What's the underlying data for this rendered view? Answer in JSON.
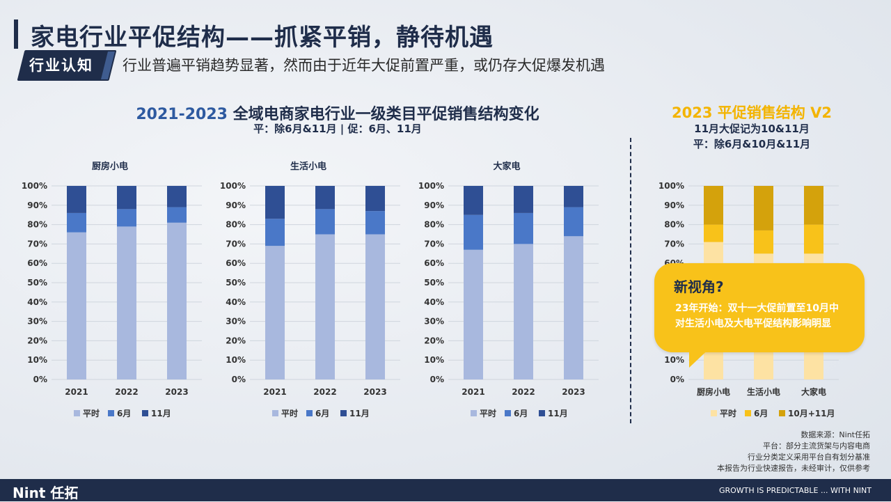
{
  "header": {
    "title": "家电行业平促结构——抓紧平销，静待机遇",
    "tag": "行业认知",
    "subtitle": "行业普遍平销趋势显著，然而由于近年大促前置严重，或仍存大促爆发机遇"
  },
  "main_section": {
    "title_years": "2021-2023",
    "title_rest": " 全域电商家电行业一级类目平促销售结构变化",
    "note": "平：除6月&11月 | 促：6月、11月"
  },
  "right_section": {
    "title": "2023 平促销售结构 V2",
    "note1": "11月大促记为10&11月",
    "note2": "平：除6月&10月&11月"
  },
  "callout": {
    "heading": "新视角?",
    "line1": "23年开始：双十一大促前置至10月中",
    "line2": "对生活小电及大电平促结构影响明显"
  },
  "sources": {
    "line1": "数据来源：Nint任拓",
    "line2": "平台：部分主流货架与内容电商",
    "line3": "行业分类定义采用平台自有划分基准",
    "line4": "本报告为行业快速报告，未经审计，仅供参考"
  },
  "footer": {
    "logo": "Nint 任拓",
    "slogan": "GROWTH IS PREDICTABLE ... WITH NINT"
  },
  "chart_data": [
    {
      "type": "bar",
      "stacked": true,
      "title": "厨房小电",
      "categories": [
        "2021",
        "2022",
        "2023"
      ],
      "yticks": [
        "0%",
        "10%",
        "20%",
        "30%",
        "40%",
        "50%",
        "60%",
        "70%",
        "80%",
        "90%",
        "100%"
      ],
      "ylim": [
        0,
        100
      ],
      "series": [
        {
          "name": "平时",
          "values": [
            76,
            79,
            81
          ],
          "color": "#a8b8de"
        },
        {
          "name": "6月",
          "values": [
            10,
            9,
            8
          ],
          "color": "#4a78c8"
        },
        {
          "name": "11月",
          "values": [
            14,
            12,
            11
          ],
          "color": "#2f4f94"
        }
      ],
      "legend": "bottom"
    },
    {
      "type": "bar",
      "stacked": true,
      "title": "生活小电",
      "categories": [
        "2021",
        "2022",
        "2023"
      ],
      "yticks": [
        "0%",
        "10%",
        "20%",
        "30%",
        "40%",
        "50%",
        "60%",
        "70%",
        "80%",
        "90%",
        "100%"
      ],
      "ylim": [
        0,
        100
      ],
      "series": [
        {
          "name": "平时",
          "values": [
            69,
            75,
            75
          ],
          "color": "#a8b8de"
        },
        {
          "name": "6月",
          "values": [
            14,
            13,
            12
          ],
          "color": "#4a78c8"
        },
        {
          "name": "11月",
          "values": [
            17,
            12,
            13
          ],
          "color": "#2f4f94"
        }
      ],
      "legend": "bottom"
    },
    {
      "type": "bar",
      "stacked": true,
      "title": "大家电",
      "categories": [
        "2021",
        "2022",
        "2023"
      ],
      "yticks": [
        "0%",
        "10%",
        "20%",
        "30%",
        "40%",
        "50%",
        "60%",
        "70%",
        "80%",
        "90%",
        "100%"
      ],
      "ylim": [
        0,
        100
      ],
      "series": [
        {
          "name": "平时",
          "values": [
            67,
            70,
            74
          ],
          "color": "#a8b8de"
        },
        {
          "name": "6月",
          "values": [
            18,
            16,
            15
          ],
          "color": "#4a78c8"
        },
        {
          "name": "11月",
          "values": [
            15,
            14,
            11
          ],
          "color": "#2f4f94"
        }
      ],
      "legend": "bottom"
    },
    {
      "type": "bar",
      "stacked": true,
      "categories": [
        "厨房小电",
        "生活小电",
        "大家电"
      ],
      "yticks": [
        "0%",
        "10%",
        "20%",
        "30%",
        "40%",
        "50%",
        "60%",
        "70%",
        "80%",
        "90%",
        "100%"
      ],
      "ylim": [
        0,
        100
      ],
      "series": [
        {
          "name": "平时",
          "values": [
            71,
            65,
            65
          ],
          "color": "#fde2a3"
        },
        {
          "name": "6月",
          "values": [
            9,
            12,
            15
          ],
          "color": "#f8c21a"
        },
        {
          "name": "10月+11月",
          "values": [
            20,
            23,
            20
          ],
          "color": "#d4a20c"
        }
      ],
      "legend": "bottom"
    }
  ]
}
